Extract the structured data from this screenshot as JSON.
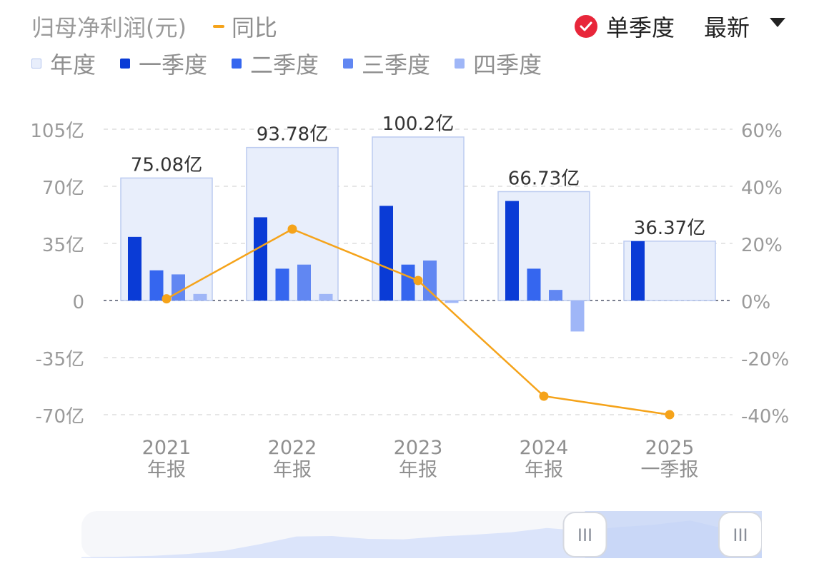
{
  "header": {
    "title": "归母净利润(元)",
    "yoy_label": "同比",
    "season_label": "单季度",
    "latest_label": "最新"
  },
  "legend": [
    {
      "label": "年度",
      "color": "#e8eefb"
    },
    {
      "label": "一季度",
      "color": "#0a3bd6"
    },
    {
      "label": "二季度",
      "color": "#3566ef"
    },
    {
      "label": "三季度",
      "color": "#6187f2"
    },
    {
      "label": "四季度",
      "color": "#9fb6f7"
    }
  ],
  "chart_data": {
    "type": "bar",
    "categories": [
      "2021\n年报",
      "2022\n年报",
      "2023\n年报",
      "2024\n年报",
      "2025\n一季报"
    ],
    "annual": [
      75.08,
      93.78,
      100.2,
      66.73,
      36.37
    ],
    "annual_labels": [
      "75.08亿",
      "93.78亿",
      "100.2亿",
      "66.73亿",
      "36.37亿"
    ],
    "quarters": [
      [
        39,
        18.5,
        16,
        4
      ],
      [
        51,
        19.5,
        22,
        4
      ],
      [
        58,
        22,
        24.5,
        -1.5
      ],
      [
        61,
        19.5,
        6.5,
        -19
      ],
      [
        36.37
      ]
    ],
    "series": [
      {
        "name": "一季度",
        "color": "#0a3bd6"
      },
      {
        "name": "二季度",
        "color": "#3566ef"
      },
      {
        "name": "三季度",
        "color": "#6187f2"
      },
      {
        "name": "四季度",
        "color": "#9fb6f7"
      }
    ],
    "yoy": {
      "name": "同比",
      "values": [
        0.6,
        25,
        7,
        -33.5,
        -40
      ],
      "color": "#f5a31a"
    },
    "y_left": {
      "ticks": [
        105,
        70,
        35,
        0,
        -35,
        -70
      ],
      "labels": [
        "105亿",
        "70亿",
        "35亿",
        "0",
        "-35亿",
        "-70亿"
      ],
      "range": [
        -70,
        105
      ]
    },
    "y_right": {
      "ticks": [
        60,
        40,
        20,
        0,
        -20,
        -40
      ],
      "labels": [
        "60%",
        "40%",
        "20%",
        "0%",
        "-20%",
        "-40%"
      ],
      "range": [
        -40,
        60
      ]
    },
    "grid": true
  },
  "slider": {
    "handle_left": "III",
    "handle_right": "III",
    "window": [
      0.74,
      1.0
    ],
    "overview": [
      0.02,
      0.03,
      0.05,
      0.09,
      0.16,
      0.3,
      0.46,
      0.47,
      0.41,
      0.4,
      0.46,
      0.5,
      0.55,
      0.64,
      0.58,
      0.66,
      0.71,
      0.8,
      0.62,
      0.4
    ]
  }
}
